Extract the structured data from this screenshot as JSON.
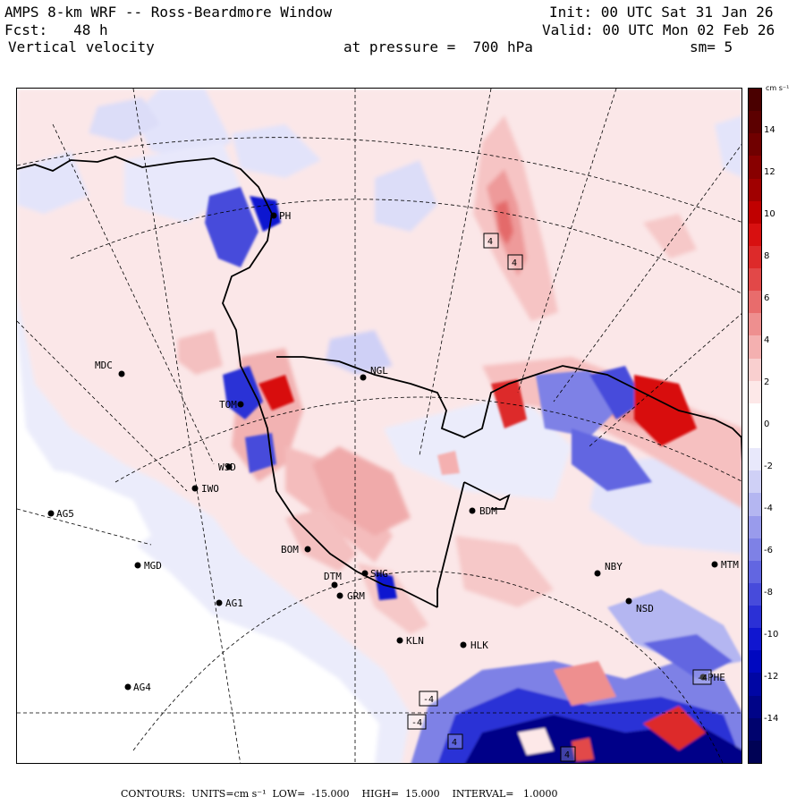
{
  "header": {
    "title": "AMPS 8-km WRF -- Ross-Beardmore Window",
    "init": "Init: 00 UTC Sat 31 Jan 26",
    "fcst": "Fcst:   48 h",
    "valid": "Valid: 00 UTC Mon 02 Feb 26",
    "field": "Vertical velocity",
    "level": "at pressure =  700 hPa",
    "smoothing": "sm= 5"
  },
  "colorbar": {
    "units_label": "cm s⁻¹",
    "tick_labels": [
      "14",
      "12",
      "10",
      "8",
      "6",
      "4",
      "2",
      "0",
      "-2",
      "-4",
      "-6",
      "-8",
      "-10",
      "-12",
      "-14"
    ],
    "range": [
      -15,
      15
    ],
    "colors_positive": [
      "#fde8e8",
      "#f9cfcf",
      "#f4b0b0",
      "#ee8f8f",
      "#e86c6c",
      "#e24848",
      "#dd2a2a",
      "#d81010",
      "#c00000",
      "#a00000",
      "#880000",
      "#700000",
      "#5c0000",
      "#4a0000"
    ],
    "colors_negative": [
      "#e8e8fb",
      "#cfd0f6",
      "#b4b6f1",
      "#999bec",
      "#7e81e6",
      "#6266e1",
      "#474bdb",
      "#2b30d6",
      "#1016d0",
      "#0008c0",
      "#0006a4",
      "#000488",
      "#00036e",
      "#000255"
    ]
  },
  "stations": [
    {
      "id": "MDC",
      "lon": 135,
      "lat": 417
    },
    {
      "id": "NGL",
      "lon": 405,
      "lat": 421
    },
    {
      "id": "TOM",
      "lon": 268,
      "lat": 451
    },
    {
      "id": "WSD",
      "lon": 255,
      "lat": 521
    },
    {
      "id": "IWO",
      "lon": 217,
      "lat": 545
    },
    {
      "id": "AG5",
      "lon": 56,
      "lat": 573
    },
    {
      "id": "BDM",
      "lon": 527,
      "lat": 570
    },
    {
      "id": "BOM",
      "lon": 343,
      "lat": 613
    },
    {
      "id": "MGD",
      "lon": 153,
      "lat": 631
    },
    {
      "id": "SHG",
      "lon": 407,
      "lat": 640
    },
    {
      "id": "NBY",
      "lon": 667,
      "lat": 640
    },
    {
      "id": "MTM",
      "lon": 798,
      "lat": 630
    },
    {
      "id": "DTM",
      "lon": 373,
      "lat": 653
    },
    {
      "id": "GRM",
      "lon": 379,
      "lat": 665
    },
    {
      "id": "AG1",
      "lon": 244,
      "lat": 673
    },
    {
      "id": "NSD",
      "lon": 702,
      "lat": 671
    },
    {
      "id": "KLN",
      "lon": 446,
      "lat": 715
    },
    {
      "id": "HLK",
      "lon": 517,
      "lat": 720
    },
    {
      "id": "PHE",
      "lon": 785,
      "lat": 756
    },
    {
      "id": "AG4",
      "lon": 142,
      "lat": 767
    },
    {
      "id": "PH",
      "lon": 305,
      "lat": 240
    }
  ],
  "extrema_boxes": [
    "4",
    "4",
    "-4",
    "-4",
    "4",
    "4",
    "-4"
  ],
  "footer": {
    "label": "CONTOURS:",
    "units": "UNITS=cm s⁻¹",
    "low": "LOW=  -15.000",
    "high": "HIGH=  15.000",
    "interval": "INTERVAL=   1.0000"
  }
}
